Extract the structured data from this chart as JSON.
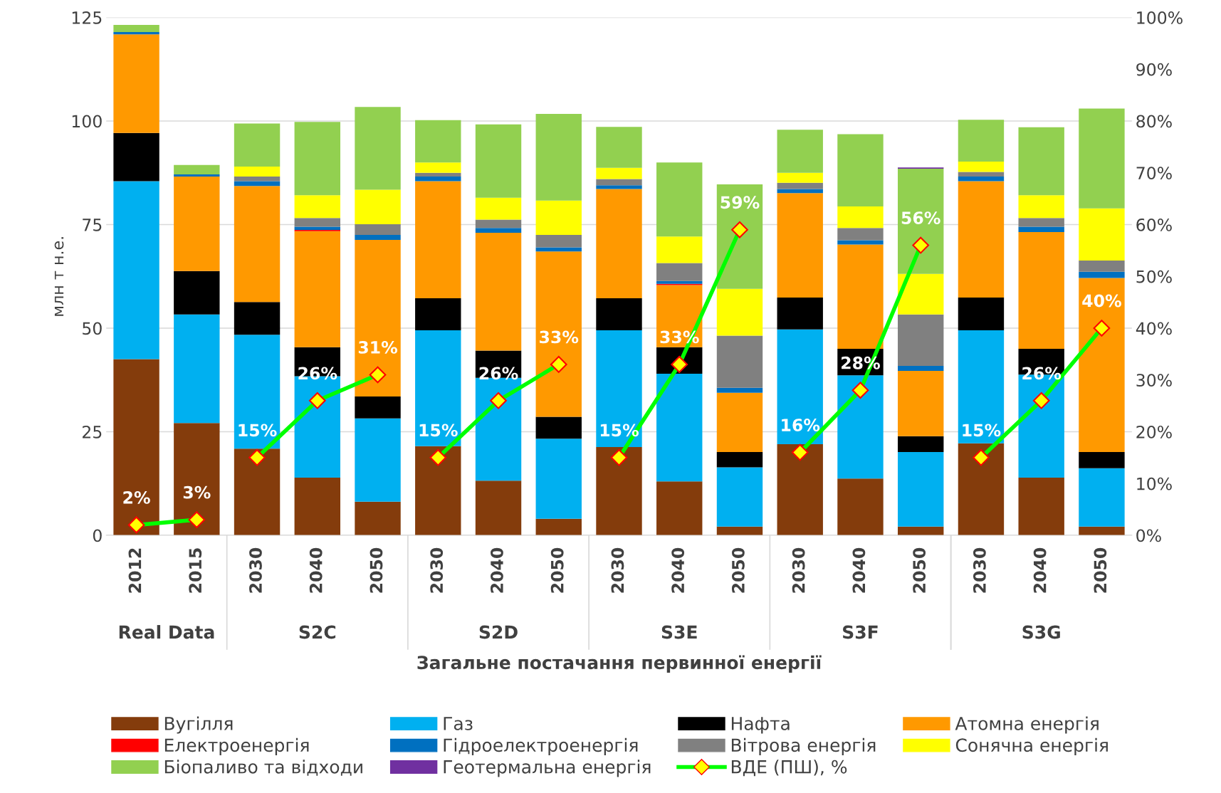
{
  "chart_data": {
    "type": "bar",
    "stacked": true,
    "ylabel": "млн т н.е.",
    "xlabel": "Загальне постачання первинної енергії",
    "categories": [
      "2012",
      "2015",
      "2030",
      "2040",
      "2050",
      "2030",
      "2040",
      "2050",
      "2030",
      "2040",
      "2050",
      "2030",
      "2040",
      "2050",
      "2030",
      "2040",
      "2050"
    ],
    "annotations": [
      "Real Data",
      "S2C",
      "S2D",
      "S3E",
      "S3F",
      "S3G"
    ],
    "ylim": [
      0,
      125
    ],
    "yticks": [
      0,
      25,
      50,
      75,
      100,
      125
    ],
    "y2lim": [
      0,
      100
    ],
    "y2ticks": [
      {
        "value": 0,
        "label": "0%"
      },
      {
        "value": 10,
        "label": "10%"
      },
      {
        "value": 20,
        "label": "20%"
      },
      {
        "value": 30,
        "label": "30%"
      },
      {
        "value": 40,
        "label": "40%"
      },
      {
        "value": 50,
        "label": "50%"
      },
      {
        "value": 60,
        "label": "60%"
      },
      {
        "value": 70,
        "label": "70%"
      },
      {
        "value": 80,
        "label": "80%"
      },
      {
        "value": 90,
        "label": "90%"
      },
      {
        "value": 100,
        "label": "100%"
      }
    ],
    "grid": "y",
    "legend": "bottom",
    "series": [
      {
        "name": "Вугілля",
        "color": "#843c0c",
        "values": [
          42.5,
          27.1,
          20.9,
          13.9,
          8.1,
          21.5,
          13.2,
          4.0,
          21.3,
          13.0,
          2.1,
          22.0,
          13.7,
          2.1,
          22.2,
          13.9,
          2.1
        ]
      },
      {
        "name": "Газ",
        "color": "#00b0f0",
        "values": [
          43.0,
          26.2,
          27.5,
          24.5,
          20.1,
          28.0,
          24.8,
          19.3,
          28.2,
          26.0,
          14.3,
          27.7,
          24.9,
          18.0,
          27.3,
          24.9,
          14.1
        ]
      },
      {
        "name": "Нафта",
        "color": "#000000",
        "values": [
          11.6,
          10.5,
          7.9,
          7.0,
          5.3,
          7.7,
          6.6,
          5.3,
          7.7,
          6.4,
          3.7,
          7.7,
          6.4,
          3.8,
          7.9,
          6.2,
          3.9
        ]
      },
      {
        "name": "Атомна енергія",
        "color": "#ff9900",
        "values": [
          23.8,
          22.8,
          28.0,
          28.0,
          37.8,
          28.3,
          28.4,
          39.9,
          26.4,
          15.0,
          14.3,
          25.2,
          25.2,
          15.8,
          28.1,
          28.2,
          42.0
        ]
      },
      {
        "name": "Електроенергія",
        "color": "#ff0000",
        "values": [
          null,
          0,
          0,
          0.3,
          0,
          0,
          0,
          0,
          0,
          0.3,
          0,
          0,
          0,
          0,
          0,
          0,
          0
        ]
      },
      {
        "name": "Гідроелектроенергія",
        "color": "#0070c0",
        "values": [
          0.6,
          0.5,
          1.2,
          0.8,
          1.2,
          1.1,
          1.2,
          1.0,
          0.9,
          0.7,
          1.2,
          1.0,
          1.0,
          1.2,
          1.1,
          1.3,
          1.5
        ]
      },
      {
        "name": "Вітрова енергія",
        "color": "#808080",
        "values": [
          0,
          0,
          1.1,
          2.1,
          2.6,
          0.9,
          2.0,
          3.0,
          1.5,
          4.3,
          12.6,
          1.5,
          3.0,
          12.4,
          1.1,
          2.1,
          2.7
        ]
      },
      {
        "name": "Сонячна енергія",
        "color": "#ffff00",
        "values": [
          0,
          0,
          2.4,
          5.5,
          8.3,
          2.5,
          5.3,
          8.3,
          2.7,
          6.4,
          11.3,
          2.4,
          5.2,
          9.8,
          2.5,
          5.5,
          12.6
        ]
      },
      {
        "name": "Біопаливо та відходи",
        "color": "#92d050",
        "values": [
          1.7,
          2.3,
          10.4,
          17.7,
          20.0,
          10.2,
          17.7,
          20.9,
          9.9,
          17.9,
          25.2,
          10.4,
          17.4,
          25.4,
          10.1,
          16.4,
          24.1
        ]
      },
      {
        "name": "Геотермальна енергія",
        "color": "#7030a0",
        "values": [
          0,
          0,
          0,
          0,
          0,
          0,
          0,
          0,
          0,
          0,
          0,
          0,
          0,
          0.3,
          0,
          0,
          0
        ]
      },
      {
        "name": "ВДЕ (ПШ), %",
        "type": "line",
        "axis": "y2",
        "color": "#00ff00",
        "marker": "diamond",
        "values": [
          2,
          3,
          15,
          26,
          31,
          15,
          26,
          33,
          15,
          33,
          59,
          16,
          28,
          56,
          15,
          26,
          40
        ],
        "value_labels": [
          "2%",
          "3%",
          "15%",
          "26%",
          "31%",
          "15%",
          "26%",
          "33%",
          "15%",
          "33%",
          "59%",
          "16%",
          "28%",
          "56%",
          "15%",
          "26%",
          "40%"
        ]
      }
    ]
  }
}
